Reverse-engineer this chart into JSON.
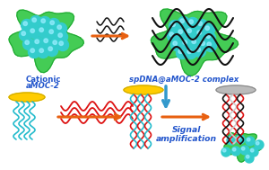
{
  "bg_color": "#ffffff",
  "fig_width": 3.0,
  "fig_height": 1.89,
  "dpi": 100,
  "label_cationic": "Cationic",
  "label_amoc": "aMOC-2",
  "label_complex": "spDNA@aMOC-2 complex",
  "label_signal": "Signal\namplification",
  "arrow_color_orange": "#E86010",
  "arrow_color_blue": "#3399CC",
  "green_blob_color": "#44CC55",
  "green_blob_edge": "#22AA33",
  "cyan_sphere_color": "#33CCCC",
  "cyan_sphere_hi": "#99EEFF",
  "yellow_disk_color": "#FFCC00",
  "yellow_disk_edge": "#CCAA00",
  "gray_disk_color": "#BBBBBB",
  "gray_disk_edge": "#888888",
  "dna_black": "#111111",
  "dna_red": "#DD1111",
  "dna_cyan": "#22BBCC",
  "dna_dark": "#111111",
  "dna_white": "#DDDDDD",
  "text_blue": "#2255CC",
  "text_fontsize": 6.2
}
